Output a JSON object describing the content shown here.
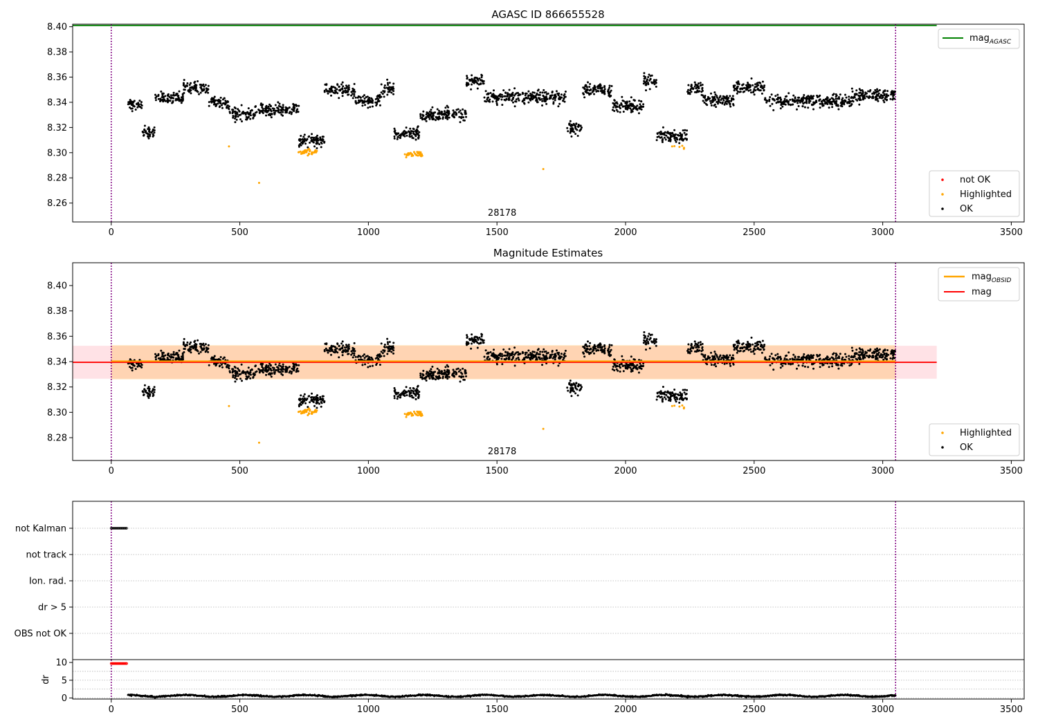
{
  "chart_data": [
    {
      "type": "scatter",
      "title": "AGASC ID 866655528",
      "xlim": [
        -150,
        3550
      ],
      "ylim": [
        8.245,
        8.402
      ],
      "x_ticks": [
        0,
        500,
        1000,
        1500,
        2000,
        2500,
        3000,
        3500
      ],
      "y_ticks": [
        8.26,
        8.28,
        8.3,
        8.32,
        8.34,
        8.36,
        8.38,
        8.4
      ],
      "annotation": "28178",
      "annotation_x": 1520,
      "obs_boundaries": [
        0,
        3050
      ],
      "lines": [
        {
          "name": "mag_AGASC",
          "label_main": "mag",
          "label_sub": "AGASC",
          "color": "#008000",
          "y": 8.401,
          "x_range": [
            -150,
            3210
          ]
        }
      ],
      "legend_lines": {
        "placement": "top-right"
      },
      "legend_points": {
        "placement": "bottom-right",
        "entries": [
          {
            "label": "not OK",
            "color": "#ff0000"
          },
          {
            "label": "Highlighted",
            "color": "#ffa500"
          },
          {
            "label": "OK",
            "color": "#000000"
          }
        ]
      },
      "ok_series": {
        "color": "#000000",
        "x_range": [
          65,
          3050
        ],
        "segments": [
          {
            "x": [
              65,
              120
            ],
            "y": 8.338
          },
          {
            "x": [
              120,
              170
            ],
            "y": 8.316
          },
          {
            "x": [
              170,
              280
            ],
            "y": 8.343
          },
          {
            "x": [
              280,
              380
            ],
            "y": 8.352
          },
          {
            "x": [
              380,
              460
            ],
            "y": 8.34
          },
          {
            "x": [
              460,
              560
            ],
            "y": 8.331
          },
          {
            "x": [
              560,
              730
            ],
            "y": 8.334
          },
          {
            "x": [
              730,
              830
            ],
            "y": 8.31
          },
          {
            "x": [
              830,
              950
            ],
            "y": 8.35
          },
          {
            "x": [
              950,
              1050
            ],
            "y": 8.341
          },
          {
            "x": [
              1050,
              1100
            ],
            "y": 8.351
          },
          {
            "x": [
              1100,
              1200
            ],
            "y": 8.315
          },
          {
            "x": [
              1200,
              1380
            ],
            "y": 8.33
          },
          {
            "x": [
              1380,
              1450
            ],
            "y": 8.357
          },
          {
            "x": [
              1450,
              1770
            ],
            "y": 8.344
          },
          {
            "x": [
              1770,
              1830
            ],
            "y": 8.32
          },
          {
            "x": [
              1830,
              1950
            ],
            "y": 8.35
          },
          {
            "x": [
              1950,
              2070
            ],
            "y": 8.337
          },
          {
            "x": [
              2070,
              2120
            ],
            "y": 8.357
          },
          {
            "x": [
              2120,
              2240
            ],
            "y": 8.313
          },
          {
            "x": [
              2240,
              2300
            ],
            "y": 8.35
          },
          {
            "x": [
              2300,
              2420
            ],
            "y": 8.342
          },
          {
            "x": [
              2420,
              2540
            ],
            "y": 8.352
          },
          {
            "x": [
              2540,
              2880
            ],
            "y": 8.341
          },
          {
            "x": [
              2880,
              3050
            ],
            "y": 8.345
          }
        ],
        "noise": 0.008
      },
      "highlighted_series": {
        "color": "#ffa500",
        "clusters": [
          {
            "x": [
              725,
              800
            ],
            "y": 8.3,
            "n": 40
          },
          {
            "x": [
              1140,
              1210
            ],
            "y": 8.299,
            "n": 40
          },
          {
            "x": [
              2165,
              2230
            ],
            "y": 8.304,
            "n": 6
          }
        ],
        "points": [
          [
            458,
            8.305
          ],
          [
            575,
            8.276
          ],
          [
            1680,
            8.287
          ]
        ]
      }
    },
    {
      "type": "scatter",
      "title": "Magnitude Estimates",
      "xlim": [
        -150,
        3550
      ],
      "ylim": [
        8.262,
        8.418
      ],
      "x_ticks": [
        0,
        500,
        1000,
        1500,
        2000,
        2500,
        3000,
        3500
      ],
      "y_ticks": [
        8.28,
        8.3,
        8.32,
        8.34,
        8.36,
        8.38,
        8.4
      ],
      "annotation": "28178",
      "annotation_x": 1520,
      "obs_boundaries": [
        0,
        3050
      ],
      "lines": [
        {
          "name": "mag_OBSID",
          "label_main": "mag",
          "label_sub": "OBSID",
          "color": "#ffa500",
          "y": 8.3395,
          "x_range": [
            0,
            3050
          ]
        },
        {
          "name": "mag",
          "label_main": "mag",
          "label_sub": "",
          "color": "#ff0000",
          "y": 8.3395,
          "x_range": [
            -150,
            3210
          ]
        }
      ],
      "bands": [
        {
          "color": "#ffb6c1",
          "opacity": 0.4,
          "y": [
            8.3265,
            8.3525
          ],
          "x_range": [
            -150,
            3210
          ]
        },
        {
          "color": "#ffa500",
          "opacity": 0.22,
          "y": [
            8.326,
            8.353
          ],
          "x_range": [
            0,
            3050
          ]
        }
      ],
      "legend_lines": {
        "placement": "top-right"
      },
      "legend_points": {
        "placement": "bottom-right",
        "entries": [
          {
            "label": "Highlighted",
            "color": "#ffa500"
          },
          {
            "label": "OK",
            "color": "#000000"
          }
        ]
      }
    },
    {
      "type": "scatter",
      "title": "",
      "xlim": [
        -150,
        3550
      ],
      "flag_labels": [
        "not Kalman",
        "not track",
        "Ion. rad.",
        "dr > 5",
        "OBS not OK"
      ],
      "flags": [
        {
          "label": "not Kalman",
          "color": "#000000",
          "x": [
            0,
            60
          ]
        }
      ],
      "dr": {
        "ylabel": "dr",
        "ylim": [
          -0.3,
          10.8
        ],
        "y_ticks": [
          0,
          5,
          10
        ],
        "x_ticks": [
          0,
          500,
          1000,
          1500,
          2000,
          2500,
          3000,
          3500
        ],
        "capped": {
          "color": "#ff0000",
          "x": [
            0,
            60
          ],
          "y": 9.7
        },
        "ok": {
          "color": "#000000",
          "x": [
            65,
            3050
          ],
          "y": 0.6
        }
      }
    }
  ]
}
